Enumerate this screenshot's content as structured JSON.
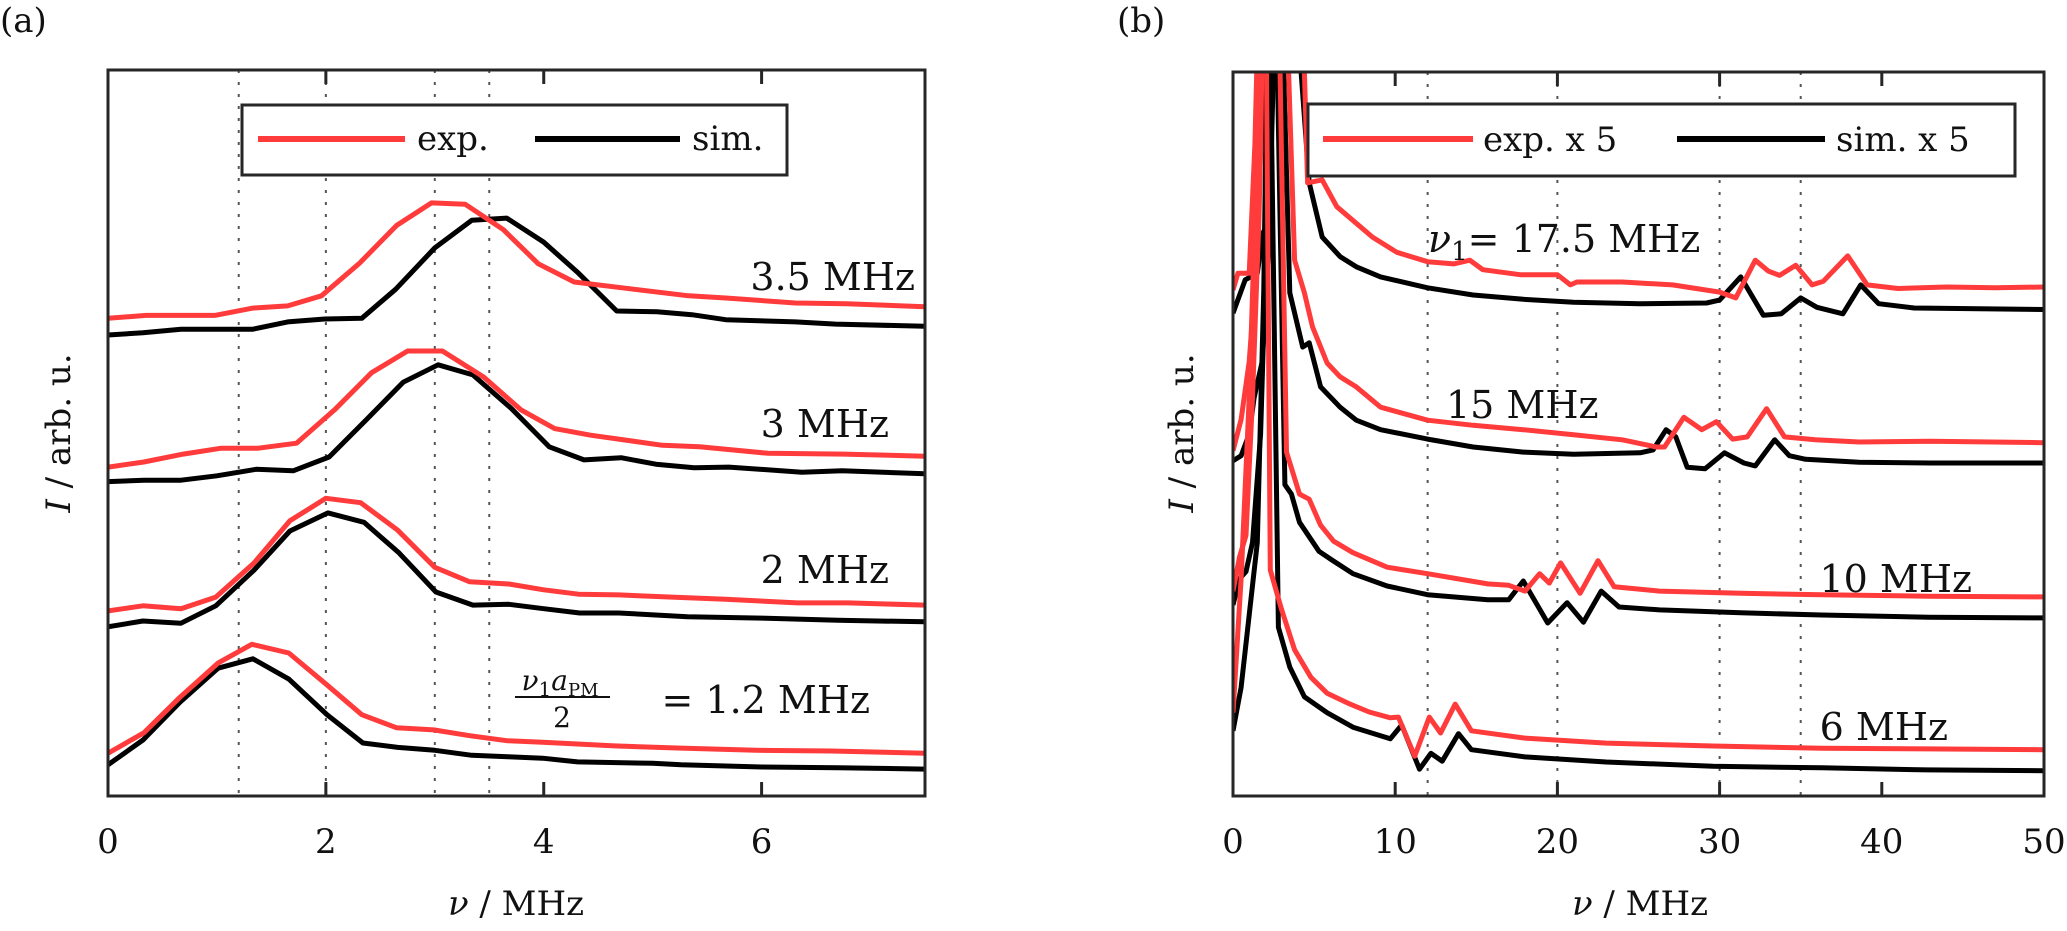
{
  "colors": {
    "exp": "#ff3b3b",
    "sim": "#000000",
    "axis": "#262626",
    "grid": "#555555"
  },
  "chart_data": [
    {
      "type": "line",
      "panel_label": "(a)",
      "xlabel": "ν / MHz",
      "ylabel": "I / arb. u.",
      "xlim": [
        0,
        7.5
      ],
      "ylim": [
        0,
        1
      ],
      "xticks": [
        0,
        2,
        4,
        6
      ],
      "xtick_labels": [
        "0",
        "2",
        "4",
        "6"
      ],
      "yticks": [],
      "vlines_dotted": [
        1.2,
        2,
        3,
        3.5
      ],
      "legend": {
        "placement": "top-center",
        "entries": [
          {
            "label": "exp.",
            "series": "exp"
          },
          {
            "label": "sim.",
            "series": "sim"
          }
        ]
      },
      "groups": [
        {
          "label": "3.5 MHz",
          "label_prefix": "",
          "exp": {
            "x": [
              0,
              0.35,
              0.98,
              1.33,
              1.65,
              1.96,
              2.31,
              2.65,
              2.97,
              3.28,
              3.63,
              3.95,
              4.28,
              4.72,
              5.33,
              5.67,
              6.31,
              6.78,
              7.5
            ],
            "y": [
              0.658,
              0.662,
              0.662,
              0.672,
              0.675,
              0.689,
              0.734,
              0.786,
              0.817,
              0.815,
              0.78,
              0.733,
              0.708,
              0.7,
              0.689,
              0.686,
              0.679,
              0.678,
              0.674
            ]
          },
          "sim": {
            "x": [
              0,
              0.32,
              0.67,
              1.33,
              1.65,
              1.99,
              2.33,
              2.64,
              3.0,
              3.34,
              3.66,
              4.0,
              4.32,
              4.67,
              5.04,
              5.36,
              5.67,
              6.31,
              6.68,
              7.5
            ],
            "y": [
              0.635,
              0.638,
              0.643,
              0.643,
              0.653,
              0.657,
              0.658,
              0.698,
              0.755,
              0.793,
              0.796,
              0.763,
              0.72,
              0.668,
              0.667,
              0.663,
              0.656,
              0.653,
              0.65,
              0.647
            ]
          }
        },
        {
          "label": "3 MHz",
          "label_prefix": "",
          "exp": {
            "x": [
              0,
              0.33,
              0.69,
              1.04,
              1.38,
              1.73,
              2.08,
              2.42,
              2.75,
              3.07,
              3.45,
              3.79,
              4.1,
              4.43,
              5.09,
              5.43,
              6.06,
              6.75,
              7.5
            ],
            "y": [
              0.453,
              0.46,
              0.471,
              0.479,
              0.479,
              0.486,
              0.532,
              0.583,
              0.613,
              0.613,
              0.577,
              0.532,
              0.506,
              0.497,
              0.483,
              0.481,
              0.472,
              0.471,
              0.468
            ]
          },
          "sim": {
            "x": [
              0,
              0.33,
              0.67,
              1.0,
              1.36,
              1.7,
              2.03,
              2.37,
              2.71,
              3.03,
              3.35,
              3.7,
              4.05,
              4.37,
              4.71,
              5.03,
              5.38,
              5.7,
              6.37,
              6.74,
              7.5
            ],
            "y": [
              0.433,
              0.435,
              0.435,
              0.441,
              0.45,
              0.448,
              0.467,
              0.518,
              0.57,
              0.594,
              0.58,
              0.534,
              0.481,
              0.463,
              0.466,
              0.457,
              0.452,
              0.453,
              0.446,
              0.448,
              0.444
            ]
          }
        },
        {
          "label": "2 MHz",
          "label_prefix": "",
          "exp": {
            "x": [
              0,
              0.32,
              0.67,
              0.99,
              1.34,
              1.67,
              2.0,
              2.32,
              2.66,
              3.0,
              3.32,
              3.68,
              4.0,
              4.32,
              4.69,
              5.32,
              5.67,
              6.33,
              6.8,
              7.5
            ],
            "y": [
              0.255,
              0.262,
              0.258,
              0.274,
              0.321,
              0.379,
              0.41,
              0.404,
              0.366,
              0.315,
              0.295,
              0.292,
              0.284,
              0.278,
              0.277,
              0.273,
              0.271,
              0.266,
              0.266,
              0.263
            ]
          },
          "sim": {
            "x": [
              0,
              0.32,
              0.67,
              0.99,
              1.34,
              1.67,
              2.02,
              2.35,
              2.67,
              3.01,
              3.35,
              3.68,
              4.0,
              4.33,
              4.69,
              5.32,
              6.0,
              6.7,
              7.5
            ],
            "y": [
              0.233,
              0.241,
              0.238,
              0.262,
              0.311,
              0.365,
              0.39,
              0.377,
              0.335,
              0.281,
              0.263,
              0.264,
              0.258,
              0.252,
              0.252,
              0.247,
              0.245,
              0.242,
              0.24
            ]
          }
        },
        {
          "label": "= 1.2 MHz",
          "label_prefix": "ν1aPM/2",
          "exp": {
            "x": [
              0,
              0.33,
              0.66,
              1.01,
              1.32,
              1.66,
              2.01,
              2.33,
              2.65,
              2.99,
              3.32,
              3.67,
              3.99,
              4.65,
              5.26,
              5.95,
              6.64,
              7.5
            ],
            "y": [
              0.059,
              0.087,
              0.136,
              0.183,
              0.209,
              0.197,
              0.153,
              0.112,
              0.094,
              0.091,
              0.083,
              0.076,
              0.074,
              0.069,
              0.066,
              0.063,
              0.062,
              0.059
            ]
          },
          "sim": {
            "x": [
              0,
              0.32,
              0.66,
              1.01,
              1.33,
              1.66,
              2.01,
              2.34,
              2.66,
              3.0,
              3.34,
              3.67,
              3.99,
              4.31,
              5.0,
              5.26,
              6.0,
              6.7,
              7.5
            ],
            "y": [
              0.043,
              0.077,
              0.129,
              0.176,
              0.189,
              0.161,
              0.112,
              0.073,
              0.067,
              0.063,
              0.056,
              0.054,
              0.052,
              0.047,
              0.045,
              0.043,
              0.04,
              0.039,
              0.037
            ]
          }
        }
      ]
    },
    {
      "type": "line",
      "panel_label": "(b)",
      "xlabel": "ν / MHz",
      "ylabel": "I / arb. u.",
      "xlim": [
        0,
        50
      ],
      "ylim": [
        0,
        1
      ],
      "xticks": [
        0,
        10,
        20,
        30,
        40,
        50
      ],
      "xtick_labels": [
        "0",
        "10",
        "20",
        "30",
        "40",
        "50"
      ],
      "yticks": [],
      "vlines_dotted": [
        12,
        20,
        30,
        35
      ],
      "legend": {
        "placement": "top-right",
        "entries": [
          {
            "label": "exp. x 5",
            "series": "exp"
          },
          {
            "label": "sim. x 5",
            "series": "sim"
          }
        ]
      },
      "groups": [
        {
          "label": "= 17.5 MHz",
          "label_prefix": "ν1",
          "exp": {
            "x": [
              0,
              0.3,
              1.0,
              1.35,
              1.8,
              2.2,
              2.6,
              3.2,
              4.4,
              4.6,
              5.5,
              6.4,
              7.6,
              8.6,
              10.1,
              12.0,
              13.6,
              14.6,
              15.4,
              17.7,
              20.0,
              20.8,
              21.2,
              24.0,
              27.1,
              30.0,
              31.0,
              32.2,
              33.0,
              33.7,
              34.7,
              35.7,
              36.4,
              37.9,
              39.1,
              41,
              44,
              47,
              50
            ],
            "y": [
              0.699,
              0.722,
              0.722,
              0.9,
              1.3,
              1.6,
              1.6,
              1.4,
              1.0,
              0.847,
              0.851,
              0.814,
              0.791,
              0.772,
              0.751,
              0.738,
              0.735,
              0.74,
              0.727,
              0.72,
              0.72,
              0.706,
              0.71,
              0.71,
              0.706,
              0.696,
              0.688,
              0.74,
              0.725,
              0.719,
              0.733,
              0.706,
              0.711,
              0.746,
              0.706,
              0.701,
              0.703,
              0.702,
              0.703
            ]
          },
          "sim": {
            "x": [
              0,
              0.75,
              1.5,
              1.85,
              2.3,
              2.6,
              3.0,
              3.6,
              4.2,
              4.7,
              5.5,
              6.6,
              7.6,
              9.1,
              12.0,
              14.8,
              17.9,
              21.0,
              25.1,
              29.2,
              30.0,
              31.3,
              32.7,
              33.8,
              35.0,
              36.0,
              37.6,
              38.7,
              39.8,
              42,
              46,
              50
            ],
            "y": [
              0.667,
              0.713,
              0.722,
              0.778,
              0.796,
              1.5,
              1.6,
              1.3,
              1.0,
              0.847,
              0.772,
              0.745,
              0.731,
              0.717,
              0.702,
              0.692,
              0.686,
              0.682,
              0.68,
              0.681,
              0.685,
              0.717,
              0.664,
              0.666,
              0.688,
              0.675,
              0.666,
              0.706,
              0.68,
              0.674,
              0.673,
              0.672
            ]
          }
        },
        {
          "label": "15 MHz",
          "label_prefix": "",
          "exp": {
            "x": [
              0,
              0.5,
              1.0,
              1.5,
              2.0,
              2.5,
              3.0,
              3.8,
              4.4,
              4.9,
              5.8,
              6.6,
              7.6,
              9.1,
              12.0,
              14.8,
              17.9,
              21.0,
              24.0,
              26.1,
              26.6,
              27.8,
              28.9,
              29.8,
              30.8,
              31.7,
              32.9,
              34.0,
              35.9,
              38.6,
              43.0,
              50
            ],
            "y": [
              0.477,
              0.52,
              0.6,
              0.75,
              1.1,
              1.5,
              1.3,
              0.74,
              0.695,
              0.648,
              0.598,
              0.579,
              0.565,
              0.537,
              0.519,
              0.512,
              0.506,
              0.499,
              0.492,
              0.482,
              0.482,
              0.523,
              0.506,
              0.517,
              0.493,
              0.496,
              0.535,
              0.496,
              0.492,
              0.489,
              0.49,
              0.488
            ]
          },
          "sim": {
            "x": [
              0,
              0.5,
              1.0,
              1.3,
              1.8,
              2.2,
              2.6,
              3.0,
              3.5,
              4.3,
              4.7,
              5.4,
              6.6,
              7.6,
              9.1,
              12.0,
              14.8,
              17.9,
              21.0,
              25.1,
              25.9,
              26.7,
              27.3,
              28.0,
              29.1,
              30.3,
              31.5,
              32.2,
              33.4,
              34.3,
              35.3,
              38.6,
              43.0,
              50
            ],
            "y": [
              0.463,
              0.47,
              0.5,
              0.55,
              0.6,
              0.75,
              1.1,
              1.1,
              0.695,
              0.62,
              0.626,
              0.565,
              0.537,
              0.519,
              0.506,
              0.493,
              0.482,
              0.475,
              0.472,
              0.474,
              0.478,
              0.506,
              0.496,
              0.454,
              0.452,
              0.474,
              0.46,
              0.456,
              0.492,
              0.47,
              0.465,
              0.461,
              0.46,
              0.46
            ]
          }
        },
        {
          "label": "10 MHz",
          "label_prefix": "",
          "exp": {
            "x": [
              0,
              0.4,
              0.8,
              1.2,
              1.6,
              2.0,
              2.6,
              3.3,
              4.1,
              4.7,
              5.4,
              6.2,
              7.4,
              9.5,
              12.0,
              15.7,
              17.0,
              18.0,
              18.9,
              19.5,
              20.2,
              21.4,
              22.5,
              23.5,
              26.3,
              31.3,
              36.3,
              42.9,
              50
            ],
            "y": [
              0.283,
              0.33,
              0.36,
              0.55,
              0.8,
              1.2,
              1.4,
              0.475,
              0.417,
              0.41,
              0.374,
              0.352,
              0.336,
              0.316,
              0.307,
              0.293,
              0.291,
              0.283,
              0.307,
              0.294,
              0.322,
              0.28,
              0.325,
              0.289,
              0.283,
              0.28,
              0.278,
              0.276,
              0.275
            ]
          },
          "sim": {
            "x": [
              0,
              0.4,
              0.8,
              1.2,
              1.7,
              2.1,
              2.5,
              3.2,
              3.6,
              4.1,
              5.3,
              6.1,
              7.4,
              9.5,
              12.0,
              15.7,
              17.0,
              17.9,
              19.4,
              20.6,
              21.6,
              22.7,
              23.8,
              26.3,
              31.3,
              36.3,
              42.9,
              50
            ],
            "y": [
              0.264,
              0.3,
              0.31,
              0.35,
              0.5,
              0.8,
              1.3,
              0.43,
              0.417,
              0.378,
              0.338,
              0.326,
              0.307,
              0.29,
              0.278,
              0.271,
              0.271,
              0.297,
              0.239,
              0.267,
              0.24,
              0.283,
              0.261,
              0.257,
              0.253,
              0.25,
              0.247,
              0.246
            ]
          }
        },
        {
          "label": "6 MHz",
          "label_prefix": "",
          "exp": {
            "x": [
              0,
              0.5,
              1.0,
              1.5,
              2.0,
              2.3,
              3.0,
              3.8,
              4.8,
              5.8,
              7.1,
              8.4,
              9.7,
              10.2,
              11.2,
              12.1,
              12.8,
              13.7,
              14.7,
              18,
              23,
              29.6,
              36.3,
              42.8,
              50
            ],
            "y": [
              0.115,
              0.3,
              0.55,
              0.9,
              1.2,
              0.312,
              0.257,
              0.202,
              0.164,
              0.142,
              0.128,
              0.116,
              0.108,
              0.109,
              0.055,
              0.109,
              0.087,
              0.127,
              0.09,
              0.08,
              0.073,
              0.069,
              0.066,
              0.065,
              0.064
            ]
          },
          "sim": {
            "x": [
              0,
              0.5,
              1.0,
              1.5,
              1.9,
              2.2,
              2.8,
              3.5,
              4.4,
              5.8,
              7.4,
              9.7,
              10.4,
              11.5,
              12.2,
              12.9,
              13.9,
              14.7,
              18,
              23,
              29.6,
              36.3,
              42.8,
              50
            ],
            "y": [
              0.09,
              0.15,
              0.25,
              0.35,
              0.7,
              1.2,
              0.233,
              0.178,
              0.137,
              0.115,
              0.095,
              0.079,
              0.098,
              0.037,
              0.059,
              0.048,
              0.086,
              0.064,
              0.054,
              0.047,
              0.041,
              0.039,
              0.036,
              0.035
            ]
          }
        }
      ]
    }
  ]
}
